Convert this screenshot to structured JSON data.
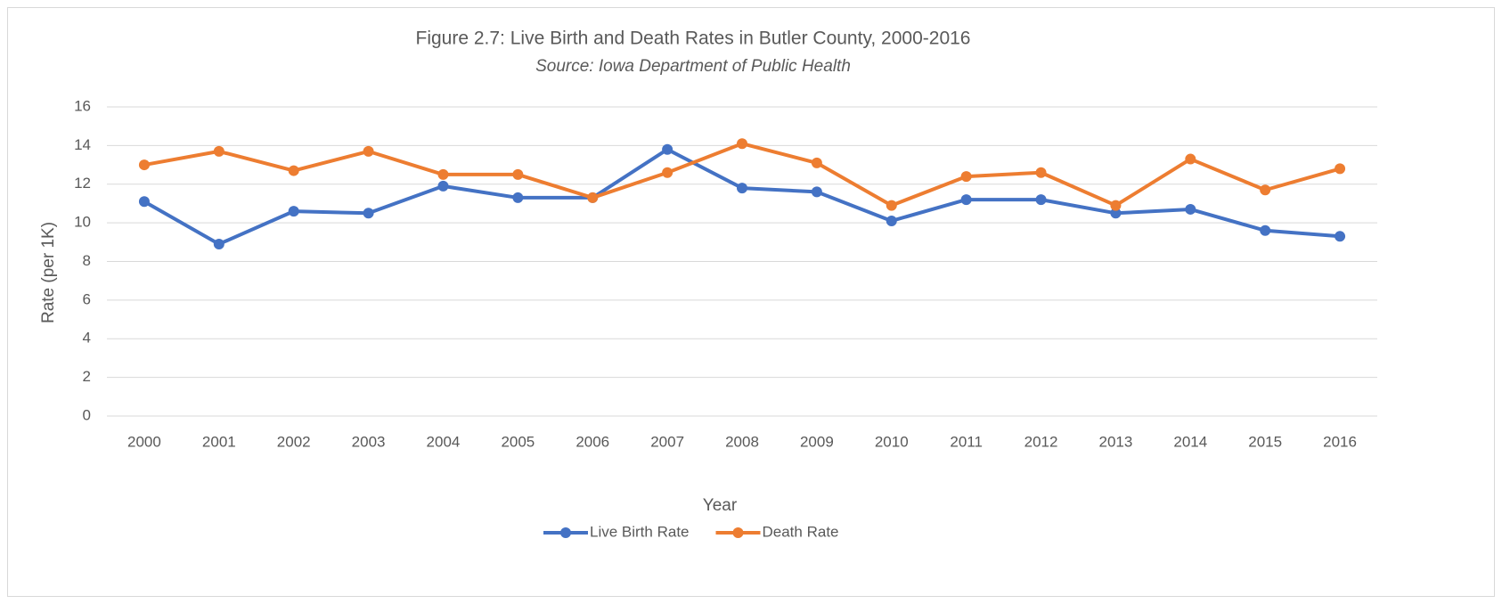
{
  "chart_data": {
    "type": "line",
    "title": "Figure 2.7: Live Birth and Death Rates in Butler County, 2000-2016",
    "subtitle": "Source: Iowa Department of Public Health",
    "x_label": "Year",
    "y_label": "Rate (per 1K)",
    "categories": [
      "2000",
      "2001",
      "2002",
      "2003",
      "2004",
      "2005",
      "2006",
      "2007",
      "2008",
      "2009",
      "2010",
      "2011",
      "2012",
      "2013",
      "2014",
      "2015",
      "2016"
    ],
    "series": [
      {
        "name": "Live Birth Rate",
        "color": "#4472c4",
        "values": [
          11.1,
          8.9,
          10.6,
          10.5,
          11.9,
          11.3,
          11.3,
          13.8,
          11.8,
          11.6,
          10.1,
          11.2,
          11.2,
          10.5,
          10.7,
          9.6,
          9.3
        ]
      },
      {
        "name": "Death Rate",
        "color": "#ed7d31",
        "values": [
          13.0,
          13.7,
          12.7,
          13.7,
          12.5,
          12.5,
          11.3,
          12.6,
          14.1,
          13.1,
          10.9,
          12.4,
          12.6,
          10.9,
          13.3,
          11.7,
          12.8
        ]
      }
    ],
    "ylim": [
      0,
      16
    ],
    "yticks": [
      0,
      2,
      4,
      6,
      8,
      10,
      12,
      14,
      16
    ],
    "grid": true,
    "legend": "bottom"
  }
}
